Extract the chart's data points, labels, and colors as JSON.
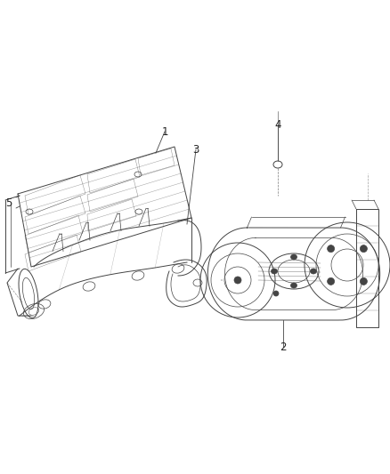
{
  "background_color": "#ffffff",
  "figure_width": 4.38,
  "figure_height": 5.33,
  "dpi": 100,
  "line_color": "#444444",
  "label_fontsize": 8.5,
  "label_color": "#222222"
}
